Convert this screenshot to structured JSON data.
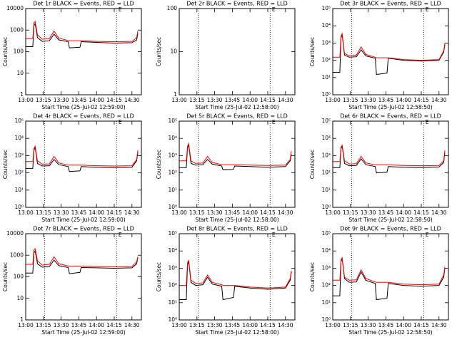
{
  "chart_data": [
    {
      "type": "line",
      "title": "Det 1r BLACK = Events, RED = LLD",
      "ylabel": "Counts/sec",
      "xlabel": "Start Time (25-Jul-02 12:59:00)",
      "log": true,
      "ylim": [
        1,
        10000
      ],
      "yticks": [
        1,
        10,
        100,
        1000,
        10000
      ],
      "xlim": [
        "13:00",
        "14:38"
      ],
      "xticks": [
        "13:00",
        "13:15",
        "13:30",
        "13:45",
        "14:00",
        "14:15",
        "14:30"
      ],
      "vlines": [
        "13:16",
        "14:17"
      ],
      "annotation": {
        "text": "E",
        "x": "14:20"
      },
      "x": [
        "13:00",
        "13:06",
        "13:07",
        "13:08",
        "13:10",
        "13:14",
        "13:20",
        "13:24",
        "13:28",
        "13:36",
        "13:37",
        "13:46",
        "13:47",
        "14:00",
        "14:15",
        "14:30",
        "14:34",
        "14:35"
      ],
      "series": [
        {
          "name": "Events",
          "color": "#000000",
          "values": [
            170,
            170,
            1600,
            2000,
            450,
            300,
            320,
            650,
            350,
            290,
            150,
            160,
            290,
            270,
            250,
            260,
            350,
            700
          ]
        },
        {
          "name": "LLD",
          "color": "#ff0000",
          "values": [
            400,
            400,
            2200,
            2500,
            600,
            380,
            400,
            900,
            420,
            330,
            320,
            320,
            320,
            300,
            290,
            300,
            450,
            900
          ]
        }
      ]
    },
    {
      "type": "line",
      "title": "Det 2r BLACK = Events, RED = LLD",
      "ylabel": "Counts/sec",
      "xlabel": "Start Time (25-Jul-02 12:58:00)",
      "log": true,
      "ylim": [
        1,
        100
      ],
      "yticks": [
        1,
        10,
        100
      ],
      "xlim": [
        "13:00",
        "14:38"
      ],
      "xticks": [
        "13:00",
        "13:15",
        "13:30",
        "13:45",
        "14:00",
        "14:15",
        "14:30"
      ],
      "vlines": [
        "13:16",
        "14:17"
      ],
      "annotation": {
        "text": "E",
        "x": "14:20"
      },
      "x": [],
      "series": [
        {
          "name": "Events",
          "color": "#000000",
          "values": []
        },
        {
          "name": "LLD",
          "color": "#ff0000",
          "values": []
        }
      ]
    },
    {
      "type": "line",
      "title": "Det 3r BLACK = Events, RED = LLD",
      "ylabel": "Counts/sec",
      "xlabel": "Start Time (25-Jul-02 12:58:50)",
      "log": true,
      "ylim": [
        1,
        100000
      ],
      "yticks": [
        {
          "value": 1,
          "label": "10⁰"
        },
        {
          "value": 10,
          "label": "10¹"
        },
        {
          "value": 100,
          "label": "10²"
        },
        {
          "value": 1000,
          "label": "10³"
        },
        {
          "value": 10000,
          "label": "10⁴"
        },
        {
          "value": 100000,
          "label": "10⁵"
        }
      ],
      "xlim": [
        "13:00",
        "14:38"
      ],
      "xticks": [
        "13:00",
        "13:15",
        "13:30",
        "13:45",
        "14:00",
        "14:15",
        "14:30"
      ],
      "vlines": [
        "13:16",
        "14:17"
      ],
      "annotation": {
        "text": "E",
        "x": "14:20"
      },
      "x": [
        "13:00",
        "13:06",
        "13:07",
        "13:08",
        "13:10",
        "13:14",
        "13:20",
        "13:24",
        "13:28",
        "13:36",
        "13:37",
        "13:46",
        "13:47",
        "14:00",
        "14:15",
        "14:30",
        "14:34",
        "14:35"
      ],
      "series": [
        {
          "name": "Events",
          "color": "#000000",
          "values": [
            20,
            20,
            2000,
            3000,
            200,
            150,
            160,
            400,
            180,
            130,
            15,
            18,
            130,
            100,
            90,
            100,
            300,
            800
          ]
        },
        {
          "name": "LLD",
          "color": "#ff0000",
          "values": [
            150,
            150,
            2500,
            3500,
            250,
            180,
            200,
            600,
            220,
            150,
            140,
            140,
            140,
            110,
            100,
            110,
            350,
            1000
          ]
        }
      ]
    },
    {
      "type": "line",
      "title": "Det 4r BLACK = Events, RED = LLD",
      "ylabel": "Counts/sec",
      "xlabel": "Start Time (25-Jul-02 12:59:00)",
      "log": true,
      "ylim": [
        1,
        100000
      ],
      "yticks": [
        {
          "value": 1,
          "label": "10⁰"
        },
        {
          "value": 10,
          "label": "10¹"
        },
        {
          "value": 100,
          "label": "10²"
        },
        {
          "value": 1000,
          "label": "10³"
        },
        {
          "value": 10000,
          "label": "10⁴"
        },
        {
          "value": 100000,
          "label": "10⁵"
        }
      ],
      "xlim": [
        "13:00",
        "14:38"
      ],
      "xticks": [
        "13:00",
        "13:15",
        "13:30",
        "13:45",
        "14:00",
        "14:15",
        "14:30"
      ],
      "vlines": [
        "13:16",
        "14:17"
      ],
      "annotation": {
        "text": "E",
        "x": "14:20"
      },
      "x": [
        "13:00",
        "13:06",
        "13:07",
        "13:08",
        "13:10",
        "13:14",
        "13:20",
        "13:24",
        "13:28",
        "13:36",
        "13:37",
        "13:46",
        "13:47",
        "14:00",
        "14:15",
        "14:30",
        "14:34",
        "14:35"
      ],
      "series": [
        {
          "name": "Events",
          "color": "#000000",
          "values": [
            180,
            180,
            2000,
            3000,
            350,
            250,
            260,
            600,
            300,
            230,
            120,
            130,
            230,
            210,
            200,
            210,
            500,
            1500
          ]
        },
        {
          "name": "LLD",
          "color": "#ff0000",
          "values": [
            450,
            450,
            2500,
            3500,
            500,
            320,
            330,
            900,
            380,
            280,
            280,
            280,
            280,
            260,
            250,
            260,
            600,
            2000
          ]
        }
      ]
    },
    {
      "type": "line",
      "title": "Det 5r BLACK = Events, RED = LLD",
      "ylabel": "Counts/sec",
      "xlabel": "Start Time (25-Jul-02 12:58:00)",
      "log": true,
      "ylim": [
        1,
        100000
      ],
      "yticks": [
        {
          "value": 1,
          "label": "10⁰"
        },
        {
          "value": 10,
          "label": "10¹"
        },
        {
          "value": 100,
          "label": "10²"
        },
        {
          "value": 1000,
          "label": "10³"
        },
        {
          "value": 10000,
          "label": "10⁴"
        },
        {
          "value": 100000,
          "label": "10⁵"
        }
      ],
      "xlim": [
        "13:00",
        "14:38"
      ],
      "xticks": [
        "13:00",
        "13:15",
        "13:30",
        "13:45",
        "14:00",
        "14:15",
        "14:30"
      ],
      "vlines": [
        "13:16",
        "14:17"
      ],
      "annotation": {
        "text": "E",
        "x": "14:20"
      },
      "x": [
        "13:00",
        "13:06",
        "13:07",
        "13:08",
        "13:10",
        "13:14",
        "13:20",
        "13:24",
        "13:28",
        "13:36",
        "13:37",
        "13:46",
        "13:47",
        "14:00",
        "14:15",
        "14:30",
        "14:34",
        "14:35"
      ],
      "series": [
        {
          "name": "Events",
          "color": "#000000",
          "values": [
            200,
            200,
            3000,
            4000,
            350,
            280,
            300,
            600,
            320,
            250,
            150,
            160,
            250,
            230,
            210,
            230,
            500,
            1200
          ]
        },
        {
          "name": "LLD",
          "color": "#ff0000",
          "values": [
            500,
            500,
            3500,
            5000,
            500,
            350,
            370,
            900,
            400,
            300,
            300,
            300,
            300,
            280,
            270,
            280,
            600,
            1800
          ]
        }
      ]
    },
    {
      "type": "line",
      "title": "Det 6r BLACK = Events, RED = LLD",
      "ylabel": "Counts/sec",
      "xlabel": "Start Time (25-Jul-02 12:58:50)",
      "log": true,
      "ylim": [
        1,
        100000
      ],
      "yticks": [
        {
          "value": 1,
          "label": "10⁰"
        },
        {
          "value": 10,
          "label": "10¹"
        },
        {
          "value": 100,
          "label": "10²"
        },
        {
          "value": 1000,
          "label": "10³"
        },
        {
          "value": 10000,
          "label": "10⁴"
        },
        {
          "value": 100000,
          "label": "10⁵"
        }
      ],
      "xlim": [
        "13:00",
        "14:38"
      ],
      "xticks": [
        "13:00",
        "13:15",
        "13:30",
        "13:45",
        "14:00",
        "14:15",
        "14:30"
      ],
      "vlines": [
        "13:16",
        "14:17"
      ],
      "annotation": {
        "text": "E",
        "x": "14:20"
      },
      "x": [
        "13:00",
        "13:06",
        "13:07",
        "13:08",
        "13:10",
        "13:14",
        "13:20",
        "13:24",
        "13:28",
        "13:36",
        "13:37",
        "13:46",
        "13:47",
        "14:00",
        "14:15",
        "14:30",
        "14:34",
        "14:35"
      ],
      "series": [
        {
          "name": "Events",
          "color": "#000000",
          "values": [
            200,
            200,
            2500,
            3500,
            350,
            260,
            270,
            650,
            300,
            230,
            100,
            110,
            230,
            210,
            200,
            220,
            400,
            1500
          ]
        },
        {
          "name": "LLD",
          "color": "#ff0000",
          "values": [
            450,
            450,
            3000,
            4000,
            500,
            330,
            340,
            900,
            380,
            290,
            290,
            290,
            290,
            270,
            260,
            270,
            500,
            2000
          ]
        }
      ]
    },
    {
      "type": "line",
      "title": "Det 7r BLACK = Events, RED = LLD",
      "ylabel": "Counts/sec",
      "xlabel": "Start Time (25-Jul-02 12:59:00)",
      "log": true,
      "ylim": [
        1,
        10000
      ],
      "yticks": [
        1,
        10,
        100,
        1000,
        10000
      ],
      "xlim": [
        "13:00",
        "14:38"
      ],
      "xticks": [
        "13:00",
        "13:15",
        "13:30",
        "13:45",
        "14:00",
        "14:15",
        "14:30"
      ],
      "vlines": [
        "13:16",
        "14:17"
      ],
      "annotation": {
        "text": "E",
        "x": "14:20"
      },
      "x": [
        "13:00",
        "13:06",
        "13:07",
        "13:08",
        "13:10",
        "13:14",
        "13:20",
        "13:24",
        "13:28",
        "13:36",
        "13:37",
        "13:46",
        "13:47",
        "14:00",
        "14:15",
        "14:30",
        "14:34",
        "14:35"
      ],
      "series": [
        {
          "name": "Events",
          "color": "#000000",
          "values": [
            150,
            150,
            1300,
            1600,
            400,
            280,
            300,
            600,
            330,
            270,
            140,
            160,
            270,
            260,
            250,
            260,
            400,
            800
          ]
        },
        {
          "name": "LLD",
          "color": "#ff0000",
          "values": [
            380,
            380,
            1800,
            2000,
            550,
            350,
            380,
            850,
            400,
            320,
            310,
            310,
            310,
            300,
            290,
            300,
            500,
            850
          ]
        }
      ]
    },
    {
      "type": "line",
      "title": "Det 8r BLACK = Events, RED = LLD",
      "ylabel": "Counts/sec",
      "xlabel": "Start Time (25-Jul-02 12:58:00)",
      "log": true,
      "ylim": [
        1,
        100000
      ],
      "yticks": [
        {
          "value": 1,
          "label": "10⁰"
        },
        {
          "value": 10,
          "label": "10¹"
        },
        {
          "value": 100,
          "label": "10²"
        },
        {
          "value": 1000,
          "label": "10³"
        },
        {
          "value": 10000,
          "label": "10⁴"
        },
        {
          "value": 100000,
          "label": "10⁵"
        }
      ],
      "xlim": [
        "13:00",
        "14:38"
      ],
      "xticks": [
        "13:00",
        "13:15",
        "13:30",
        "13:45",
        "14:00",
        "14:15",
        "14:30"
      ],
      "vlines": [
        "13:16",
        "14:17"
      ],
      "annotation": {
        "text": "E",
        "x": "14:20"
      },
      "x": [
        "13:00",
        "13:06",
        "13:07",
        "13:08",
        "13:10",
        "13:14",
        "13:20",
        "13:24",
        "13:28",
        "13:36",
        "13:37",
        "13:46",
        "13:47",
        "14:00",
        "14:15",
        "14:30",
        "14:34",
        "14:35"
      ],
      "series": [
        {
          "name": "Events",
          "color": "#000000",
          "values": [
            15,
            15,
            1500,
            2500,
            150,
            100,
            110,
            300,
            120,
            90,
            15,
            20,
            90,
            70,
            60,
            70,
            200,
            600
          ]
        },
        {
          "name": "LLD",
          "color": "#ff0000",
          "values": [
            100,
            100,
            2000,
            3000,
            200,
            130,
            140,
            400,
            150,
            110,
            100,
            100,
            100,
            80,
            70,
            80,
            250,
            700
          ]
        }
      ]
    },
    {
      "type": "line",
      "title": "Det 9r BLACK = Events, RED = LLD",
      "ylabel": "Counts/sec",
      "xlabel": "Start Time (25-Jul-02 12:58:50)",
      "log": true,
      "ylim": [
        1,
        100000
      ],
      "yticks": [
        {
          "value": 1,
          "label": "10⁰"
        },
        {
          "value": 10,
          "label": "10¹"
        },
        {
          "value": 100,
          "label": "10²"
        },
        {
          "value": 1000,
          "label": "10³"
        },
        {
          "value": 10000,
          "label": "10⁴"
        },
        {
          "value": 100000,
          "label": "10⁵"
        }
      ],
      "xlim": [
        "13:00",
        "14:38"
      ],
      "xticks": [
        "13:00",
        "13:15",
        "13:30",
        "13:45",
        "14:00",
        "14:15",
        "14:30"
      ],
      "vlines": [
        "13:16",
        "14:17"
      ],
      "annotation": {
        "text": "E",
        "x": "14:20"
      },
      "x": [
        "13:00",
        "13:06",
        "13:07",
        "13:08",
        "13:10",
        "13:14",
        "13:20",
        "13:24",
        "13:28",
        "13:36",
        "13:37",
        "13:46",
        "13:47",
        "14:00",
        "14:15",
        "14:30",
        "14:34",
        "14:35"
      ],
      "series": [
        {
          "name": "Events",
          "color": "#000000",
          "values": [
            25,
            25,
            2500,
            3500,
            250,
            150,
            160,
            600,
            200,
            130,
            15,
            18,
            130,
            100,
            90,
            100,
            300,
            1000
          ]
        },
        {
          "name": "LLD",
          "color": "#ff0000",
          "values": [
            200,
            200,
            3000,
            4000,
            300,
            200,
            210,
            800,
            250,
            160,
            150,
            150,
            150,
            120,
            110,
            120,
            400,
            1200
          ]
        }
      ]
    }
  ]
}
